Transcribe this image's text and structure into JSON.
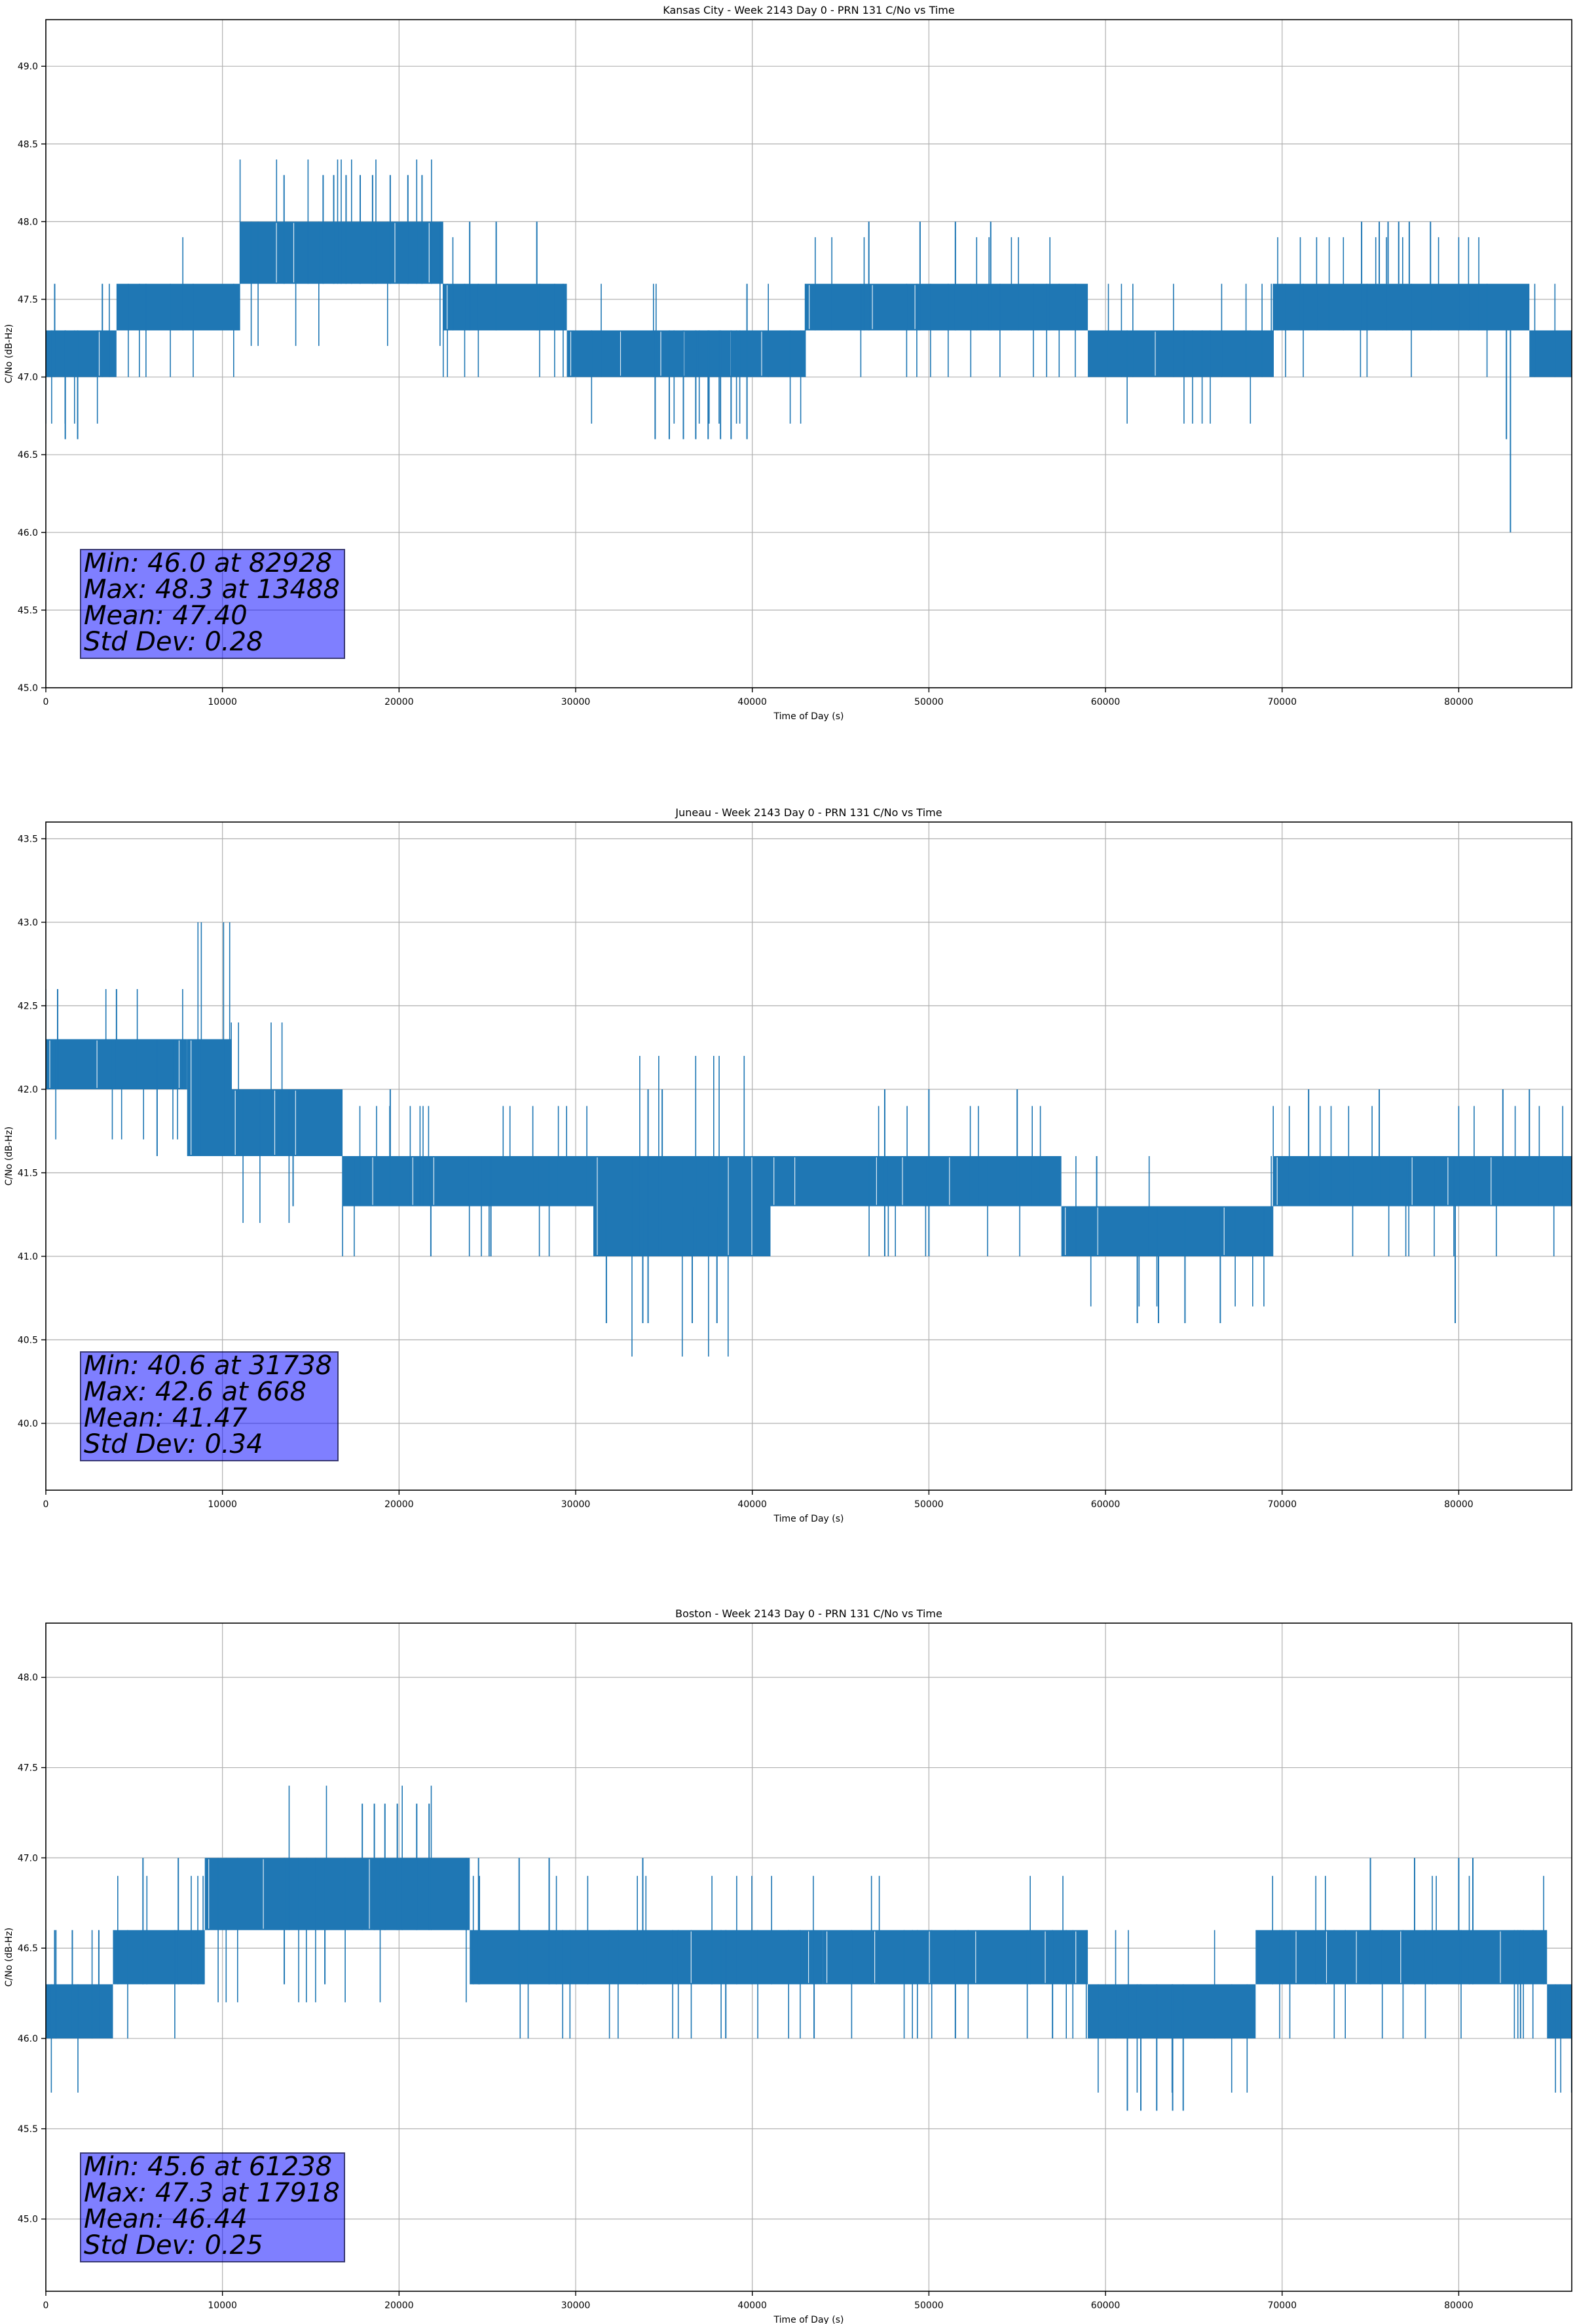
{
  "chart_data": [
    {
      "type": "line",
      "title": "Kansas City - Week 2143 Day 0 - PRN 131 C/No vs Time",
      "xlabel": "Time of Day (s)",
      "ylabel": "C/No (dB-Hz)",
      "xlim": [
        0,
        86400
      ],
      "ylim": [
        45.0,
        49.3
      ],
      "xticks": [
        0,
        10000,
        20000,
        30000,
        40000,
        50000,
        60000,
        70000,
        80000
      ],
      "yticks": [
        45.0,
        45.5,
        46.0,
        46.5,
        47.0,
        47.5,
        48.0,
        48.5,
        49.0
      ],
      "ytick_labels": [
        "45.0",
        "45.5",
        "46.0",
        "46.5",
        "47.0",
        "47.5",
        "48.0",
        "48.5",
        "49.0"
      ],
      "grid": true,
      "color": "#1f77b4",
      "stats": [
        "Min: 46.0 at 82928",
        "Max: 48.3 at 13488",
        "Mean: 47.40",
        "Std Dev: 0.28"
      ],
      "bands": [
        {
          "x": [
            0,
            4000
          ],
          "lo": 47.0,
          "hi": 47.3
        },
        {
          "x": [
            4000,
            11000
          ],
          "lo": 47.3,
          "hi": 47.6
        },
        {
          "x": [
            11000,
            22500
          ],
          "lo": 47.6,
          "hi": 48.0
        },
        {
          "x": [
            22500,
            29500
          ],
          "lo": 47.3,
          "hi": 47.6
        },
        {
          "x": [
            29500,
            43000
          ],
          "lo": 47.0,
          "hi": 47.3
        },
        {
          "x": [
            43000,
            59000
          ],
          "lo": 47.3,
          "hi": 47.6
        },
        {
          "x": [
            59000,
            69500
          ],
          "lo": 47.0,
          "hi": 47.3
        },
        {
          "x": [
            69500,
            84000
          ],
          "lo": 47.3,
          "hi": 47.6
        },
        {
          "x": [
            84000,
            86400
          ],
          "lo": 47.0,
          "hi": 47.3
        }
      ],
      "spikes": [
        [
          500,
          47.0,
          47.6
        ],
        [
          1100,
          46.6,
          47.3
        ],
        [
          1800,
          46.6,
          47.3
        ],
        [
          3200,
          47.0,
          47.6
        ],
        [
          13488,
          47.6,
          48.3
        ],
        [
          15700,
          47.6,
          48.3
        ],
        [
          16300,
          47.6,
          48.3
        ],
        [
          17000,
          47.6,
          48.3
        ],
        [
          17800,
          47.6,
          48.3
        ],
        [
          18500,
          47.6,
          48.3
        ],
        [
          19500,
          47.6,
          48.3
        ],
        [
          20500,
          47.6,
          48.3
        ],
        [
          21300,
          47.6,
          48.3
        ],
        [
          24000,
          47.3,
          48.0
        ],
        [
          25500,
          47.3,
          48.0
        ],
        [
          27800,
          47.3,
          48.0
        ],
        [
          34500,
          46.6,
          47.3
        ],
        [
          35300,
          46.6,
          47.3
        ],
        [
          36100,
          46.6,
          47.3
        ],
        [
          36800,
          46.6,
          47.3
        ],
        [
          37500,
          46.6,
          47.3
        ],
        [
          38200,
          46.6,
          47.3
        ],
        [
          38800,
          46.6,
          47.3
        ],
        [
          39700,
          46.6,
          47.6
        ],
        [
          46600,
          47.3,
          48.0
        ],
        [
          49500,
          47.3,
          48.0
        ],
        [
          51500,
          47.3,
          48.0
        ],
        [
          53500,
          47.3,
          48.0
        ],
        [
          74500,
          47.6,
          48.0
        ],
        [
          75500,
          47.6,
          48.0
        ],
        [
          76000,
          47.6,
          48.0
        ],
        [
          76600,
          47.6,
          48.0
        ],
        [
          77200,
          47.6,
          48.0
        ],
        [
          78400,
          47.3,
          48.0
        ],
        [
          82700,
          46.6,
          47.3
        ],
        [
          82928,
          46.0,
          47.3
        ]
      ]
    },
    {
      "type": "line",
      "title": "Juneau - Week 2143 Day 0 - PRN 131 C/No vs Time",
      "xlabel": "Time of Day (s)",
      "ylabel": "C/No (dB-Hz)",
      "xlim": [
        0,
        86400
      ],
      "ylim": [
        39.6,
        43.6
      ],
      "xticks": [
        0,
        10000,
        20000,
        30000,
        40000,
        50000,
        60000,
        70000,
        80000
      ],
      "yticks": [
        40.0,
        40.5,
        41.0,
        41.5,
        42.0,
        42.5,
        43.0,
        43.5
      ],
      "ytick_labels": [
        "40.0",
        "40.5",
        "41.0",
        "41.5",
        "42.0",
        "42.5",
        "43.0",
        "43.5"
      ],
      "grid": true,
      "color": "#1f77b4",
      "stats": [
        "Min: 40.6 at 31738",
        "Max: 42.6 at 668",
        "Mean: 41.47",
        "Std Dev: 0.34"
      ],
      "bands": [
        {
          "x": [
            0,
            8000
          ],
          "lo": 42.0,
          "hi": 42.3
        },
        {
          "x": [
            8000,
            10500
          ],
          "lo": 41.6,
          "hi": 42.3
        },
        {
          "x": [
            10500,
            16800
          ],
          "lo": 41.6,
          "hi": 42.0
        },
        {
          "x": [
            16800,
            31000
          ],
          "lo": 41.3,
          "hi": 41.6
        },
        {
          "x": [
            31000,
            41000
          ],
          "lo": 41.0,
          "hi": 41.6
        },
        {
          "x": [
            41000,
            57500
          ],
          "lo": 41.3,
          "hi": 41.6
        },
        {
          "x": [
            57500,
            69500
          ],
          "lo": 41.0,
          "hi": 41.3
        },
        {
          "x": [
            69500,
            80000
          ],
          "lo": 41.3,
          "hi": 41.6
        },
        {
          "x": [
            80000,
            86400
          ],
          "lo": 41.3,
          "hi": 41.6
        }
      ],
      "spikes": [
        [
          668,
          42.0,
          42.6
        ],
        [
          4000,
          42.0,
          42.6
        ],
        [
          6300,
          41.6,
          42.3
        ],
        [
          14000,
          41.3,
          42.0
        ],
        [
          19500,
          41.3,
          42.0
        ],
        [
          21800,
          41.0,
          41.6
        ],
        [
          25200,
          41.0,
          41.6
        ],
        [
          31738,
          40.6,
          41.3
        ],
        [
          33800,
          40.6,
          41.3
        ],
        [
          34100,
          40.6,
          42.0
        ],
        [
          34900,
          41.0,
          42.0
        ],
        [
          36600,
          40.6,
          41.3
        ],
        [
          38000,
          40.6,
          41.3
        ],
        [
          47500,
          41.0,
          42.0
        ],
        [
          50000,
          41.0,
          42.0
        ],
        [
          55000,
          41.3,
          42.0
        ],
        [
          59500,
          41.0,
          41.6
        ],
        [
          61800,
          40.6,
          41.3
        ],
        [
          63000,
          40.6,
          41.3
        ],
        [
          64500,
          40.6,
          41.3
        ],
        [
          66500,
          40.6,
          41.3
        ],
        [
          71500,
          41.3,
          42.0
        ],
        [
          75500,
          41.3,
          42.0
        ],
        [
          79800,
          40.6,
          41.6
        ],
        [
          82500,
          41.3,
          42.0
        ],
        [
          84000,
          41.3,
          42.0
        ]
      ]
    },
    {
      "type": "line",
      "title": "Boston - Week 2143 Day 0 - PRN 131 C/No vs Time",
      "xlabel": "Time of Day (s)",
      "ylabel": "C/No (dB-Hz)",
      "xlim": [
        0,
        86400
      ],
      "ylim": [
        44.6,
        48.3
      ],
      "xticks": [
        0,
        10000,
        20000,
        30000,
        40000,
        50000,
        60000,
        70000,
        80000
      ],
      "yticks": [
        45.0,
        45.5,
        46.0,
        46.5,
        47.0,
        47.5,
        48.0
      ],
      "ytick_labels": [
        "45.0",
        "45.5",
        "46.0",
        "46.5",
        "47.0",
        "47.5",
        "48.0"
      ],
      "grid": true,
      "color": "#1f77b4",
      "stats": [
        "Min: 45.6 at 61238",
        "Max: 47.3 at 17918",
        "Mean: 46.44",
        "Std Dev: 0.25"
      ],
      "bands": [
        {
          "x": [
            0,
            3800
          ],
          "lo": 46.0,
          "hi": 46.3
        },
        {
          "x": [
            3800,
            9000
          ],
          "lo": 46.3,
          "hi": 46.6
        },
        {
          "x": [
            9000,
            24000
          ],
          "lo": 46.6,
          "hi": 47.0
        },
        {
          "x": [
            24000,
            44000
          ],
          "lo": 46.3,
          "hi": 46.6
        },
        {
          "x": [
            44000,
            59000
          ],
          "lo": 46.3,
          "hi": 46.6
        },
        {
          "x": [
            59000,
            68500
          ],
          "lo": 46.0,
          "hi": 46.3
        },
        {
          "x": [
            68500,
            85000
          ],
          "lo": 46.3,
          "hi": 46.6
        },
        {
          "x": [
            85000,
            86400
          ],
          "lo": 46.0,
          "hi": 46.3
        }
      ],
      "spikes": [
        [
          500,
          46.0,
          46.6
        ],
        [
          1500,
          46.0,
          46.6
        ],
        [
          3000,
          46.0,
          46.6
        ],
        [
          5500,
          46.3,
          47.0
        ],
        [
          7500,
          46.3,
          47.0
        ],
        [
          13500,
          46.3,
          47.0
        ],
        [
          15800,
          46.3,
          47.0
        ],
        [
          17918,
          46.6,
          47.3
        ],
        [
          18600,
          46.6,
          47.3
        ],
        [
          19200,
          46.6,
          47.3
        ],
        [
          19900,
          46.6,
          47.3
        ],
        [
          21000,
          46.6,
          47.3
        ],
        [
          21700,
          46.6,
          47.3
        ],
        [
          24500,
          46.3,
          47.0
        ],
        [
          26800,
          46.3,
          47.0
        ],
        [
          28500,
          46.3,
          47.0
        ],
        [
          33800,
          46.3,
          47.0
        ],
        [
          38500,
          46.0,
          46.6
        ],
        [
          43500,
          46.0,
          46.6
        ],
        [
          51500,
          46.0,
          46.6
        ],
        [
          57000,
          46.0,
          46.6
        ],
        [
          61238,
          45.6,
          46.3
        ],
        [
          62000,
          45.6,
          46.3
        ],
        [
          62900,
          45.6,
          46.3
        ],
        [
          63800,
          45.6,
          46.3
        ],
        [
          64400,
          45.6,
          46.3
        ],
        [
          75000,
          46.3,
          47.0
        ],
        [
          77500,
          46.3,
          47.0
        ],
        [
          80000,
          46.3,
          47.0
        ],
        [
          80800,
          46.3,
          47.0
        ],
        [
          83500,
          46.0,
          46.6
        ]
      ]
    }
  ]
}
